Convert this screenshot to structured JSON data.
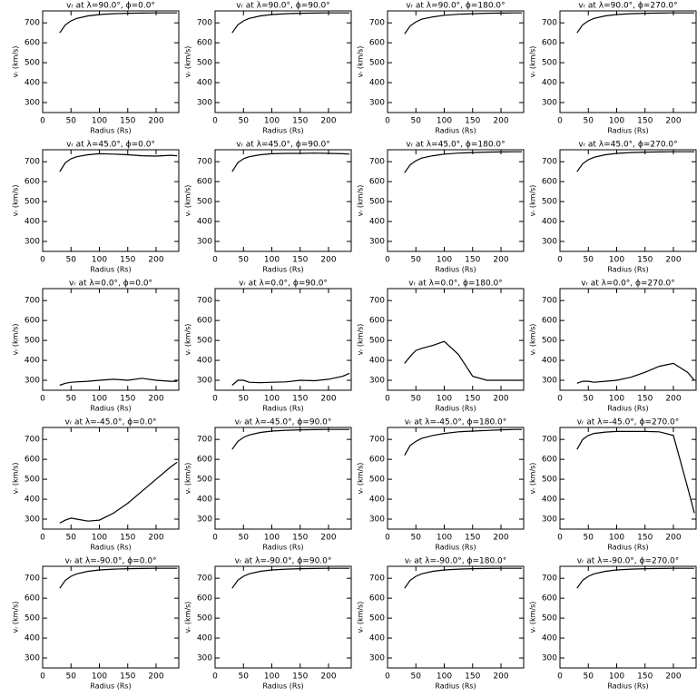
{
  "chart_data": [
    {
      "type": "line",
      "title": "vᵣ at λ=90.0°, ϕ=0.0°",
      "x_label": "Radius (Rs)",
      "y_label": "vᵣ (km/s)",
      "x": [
        30,
        40,
        50,
        60,
        80,
        100,
        125,
        150,
        175,
        200,
        225,
        237
      ],
      "values": [
        650,
        690,
        710,
        722,
        735,
        742,
        746,
        748,
        749,
        750,
        750,
        750
      ],
      "xlim": [
        0,
        240
      ],
      "ylim": [
        250,
        760
      ],
      "xticks": [
        0,
        50,
        100,
        150,
        200
      ],
      "yticks": [
        300,
        400,
        500,
        600,
        700
      ],
      "color": "#000000"
    },
    {
      "type": "line",
      "title": "vᵣ at λ=90.0°, ϕ=90.0°",
      "x_label": "Radius (Rs)",
      "y_label": "vᵣ (km/s)",
      "x": [
        30,
        40,
        50,
        60,
        80,
        100,
        125,
        150,
        175,
        200,
        225,
        237
      ],
      "values": [
        650,
        690,
        710,
        722,
        735,
        742,
        746,
        748,
        749,
        750,
        750,
        750
      ],
      "xlim": [
        0,
        240
      ],
      "ylim": [
        250,
        760
      ],
      "xticks": [
        0,
        50,
        100,
        150,
        200
      ],
      "yticks": [
        300,
        400,
        500,
        600,
        700
      ],
      "color": "#000000"
    },
    {
      "type": "line",
      "title": "vᵣ at λ=90.0°, ϕ=180.0°",
      "x_label": "Radius (Rs)",
      "y_label": "vᵣ (km/s)",
      "x": [
        30,
        40,
        50,
        60,
        80,
        100,
        125,
        150,
        175,
        200,
        225,
        237
      ],
      "values": [
        645,
        685,
        705,
        718,
        730,
        738,
        743,
        746,
        748,
        749,
        750,
        750
      ],
      "xlim": [
        0,
        240
      ],
      "ylim": [
        250,
        760
      ],
      "xticks": [
        0,
        50,
        100,
        150,
        200
      ],
      "yticks": [
        300,
        400,
        500,
        600,
        700
      ],
      "color": "#000000"
    },
    {
      "type": "line",
      "title": "vᵣ at λ=90.0°, ϕ=270.0°",
      "x_label": "Radius (Rs)",
      "y_label": "vᵣ (km/s)",
      "x": [
        30,
        40,
        50,
        60,
        80,
        100,
        125,
        150,
        175,
        200,
        225,
        237
      ],
      "values": [
        650,
        690,
        710,
        722,
        735,
        742,
        746,
        748,
        749,
        750,
        750,
        750
      ],
      "xlim": [
        0,
        240
      ],
      "ylim": [
        250,
        760
      ],
      "xticks": [
        0,
        50,
        100,
        150,
        200
      ],
      "yticks": [
        300,
        400,
        500,
        600,
        700
      ],
      "color": "#000000"
    },
    {
      "type": "line",
      "title": "vᵣ at λ=45.0°, ϕ=0.0°",
      "x_label": "Radius (Rs)",
      "y_label": "vᵣ (km/s)",
      "x": [
        30,
        40,
        50,
        60,
        80,
        100,
        125,
        150,
        175,
        200,
        225,
        237
      ],
      "values": [
        650,
        695,
        715,
        725,
        735,
        740,
        738,
        735,
        730,
        728,
        732,
        730
      ],
      "xlim": [
        0,
        240
      ],
      "ylim": [
        250,
        760
      ],
      "xticks": [
        0,
        50,
        100,
        150,
        200
      ],
      "yticks": [
        300,
        400,
        500,
        600,
        700
      ],
      "color": "#000000"
    },
    {
      "type": "line",
      "title": "vᵣ at λ=45.0°, ϕ=90.0°",
      "x_label": "Radius (Rs)",
      "y_label": "vᵣ (km/s)",
      "x": [
        30,
        40,
        50,
        60,
        80,
        100,
        125,
        150,
        175,
        200,
        225,
        237
      ],
      "values": [
        650,
        695,
        715,
        725,
        735,
        740,
        742,
        742,
        743,
        742,
        740,
        738
      ],
      "xlim": [
        0,
        240
      ],
      "ylim": [
        250,
        760
      ],
      "xticks": [
        0,
        50,
        100,
        150,
        200
      ],
      "yticks": [
        300,
        400,
        500,
        600,
        700
      ],
      "color": "#000000"
    },
    {
      "type": "line",
      "title": "vᵣ at λ=45.0°, ϕ=180.0°",
      "x_label": "Radius (Rs)",
      "y_label": "vᵣ (km/s)",
      "x": [
        30,
        40,
        50,
        60,
        80,
        100,
        125,
        150,
        175,
        200,
        225,
        237
      ],
      "values": [
        645,
        685,
        705,
        718,
        730,
        738,
        743,
        746,
        748,
        749,
        750,
        750
      ],
      "xlim": [
        0,
        240
      ],
      "ylim": [
        250,
        760
      ],
      "xticks": [
        0,
        50,
        100,
        150,
        200
      ],
      "yticks": [
        300,
        400,
        500,
        600,
        700
      ],
      "color": "#000000"
    },
    {
      "type": "line",
      "title": "vᵣ at λ=45.0°, ϕ=270.0°",
      "x_label": "Radius (Rs)",
      "y_label": "vᵣ (km/s)",
      "x": [
        30,
        40,
        50,
        60,
        80,
        100,
        125,
        150,
        175,
        200,
        225,
        237
      ],
      "values": [
        650,
        690,
        710,
        722,
        735,
        742,
        746,
        748,
        749,
        750,
        750,
        750
      ],
      "xlim": [
        0,
        240
      ],
      "ylim": [
        250,
        760
      ],
      "xticks": [
        0,
        50,
        100,
        150,
        200
      ],
      "yticks": [
        300,
        400,
        500,
        600,
        700
      ],
      "color": "#000000"
    },
    {
      "type": "line",
      "title": "vᵣ at λ=0.0°, ϕ=0.0°",
      "x_label": "Radius (Rs)",
      "y_label": "vᵣ (km/s)",
      "x": [
        30,
        40,
        50,
        60,
        80,
        100,
        125,
        150,
        175,
        200,
        225,
        237
      ],
      "values": [
        275,
        285,
        290,
        292,
        295,
        300,
        305,
        300,
        310,
        300,
        295,
        295
      ],
      "xlim": [
        0,
        240
      ],
      "ylim": [
        250,
        760
      ],
      "xticks": [
        0,
        50,
        100,
        150,
        200
      ],
      "yticks": [
        300,
        400,
        500,
        600,
        700
      ],
      "color": "#000000"
    },
    {
      "type": "line",
      "title": "vᵣ at λ=0.0°, ϕ=90.0°",
      "x_label": "Radius (Rs)",
      "y_label": "vᵣ (km/s)",
      "x": [
        30,
        40,
        50,
        60,
        80,
        100,
        125,
        150,
        175,
        200,
        225,
        237
      ],
      "values": [
        275,
        300,
        300,
        290,
        288,
        290,
        292,
        300,
        298,
        305,
        320,
        335
      ],
      "xlim": [
        0,
        240
      ],
      "ylim": [
        250,
        760
      ],
      "xticks": [
        0,
        50,
        100,
        150,
        200
      ],
      "yticks": [
        300,
        400,
        500,
        600,
        700
      ],
      "color": "#000000"
    },
    {
      "type": "line",
      "title": "vᵣ at λ=0.0°, ϕ=180.0°",
      "x_label": "Radius (Rs)",
      "y_label": "vᵣ (km/s)",
      "x": [
        30,
        40,
        50,
        60,
        80,
        100,
        125,
        150,
        175,
        200,
        225,
        237
      ],
      "values": [
        385,
        420,
        450,
        460,
        475,
        495,
        430,
        320,
        300,
        300,
        300,
        300
      ],
      "xlim": [
        0,
        240
      ],
      "ylim": [
        250,
        760
      ],
      "xticks": [
        0,
        50,
        100,
        150,
        200
      ],
      "yticks": [
        300,
        400,
        500,
        600,
        700
      ],
      "color": "#000000"
    },
    {
      "type": "line",
      "title": "vᵣ at λ=0.0°, ϕ=270.0°",
      "x_label": "Radius (Rs)",
      "y_label": "vᵣ (km/s)",
      "x": [
        30,
        40,
        50,
        60,
        80,
        100,
        125,
        150,
        175,
        200,
        225,
        237
      ],
      "values": [
        285,
        295,
        295,
        290,
        295,
        300,
        315,
        340,
        370,
        385,
        340,
        300
      ],
      "xlim": [
        0,
        240
      ],
      "ylim": [
        250,
        760
      ],
      "xticks": [
        0,
        50,
        100,
        150,
        200
      ],
      "yticks": [
        300,
        400,
        500,
        600,
        700
      ],
      "color": "#000000"
    },
    {
      "type": "line",
      "title": "vᵣ at λ=-45.0°, ϕ=0.0°",
      "x_label": "Radius (Rs)",
      "y_label": "vᵣ (km/s)",
      "x": [
        30,
        40,
        50,
        60,
        80,
        100,
        125,
        150,
        175,
        200,
        225,
        237
      ],
      "values": [
        280,
        295,
        305,
        300,
        290,
        295,
        330,
        380,
        440,
        500,
        560,
        585
      ],
      "xlim": [
        0,
        240
      ],
      "ylim": [
        250,
        760
      ],
      "xticks": [
        0,
        50,
        100,
        150,
        200
      ],
      "yticks": [
        300,
        400,
        500,
        600,
        700
      ],
      "color": "#000000"
    },
    {
      "type": "line",
      "title": "vᵣ at λ=-45.0°, ϕ=90.0°",
      "x_label": "Radius (Rs)",
      "y_label": "vᵣ (km/s)",
      "x": [
        30,
        40,
        50,
        60,
        80,
        100,
        125,
        150,
        175,
        200,
        225,
        237
      ],
      "values": [
        650,
        690,
        710,
        722,
        735,
        742,
        746,
        748,
        749,
        750,
        750,
        750
      ],
      "xlim": [
        0,
        240
      ],
      "ylim": [
        250,
        760
      ],
      "xticks": [
        0,
        50,
        100,
        150,
        200
      ],
      "yticks": [
        300,
        400,
        500,
        600,
        700
      ],
      "color": "#000000"
    },
    {
      "type": "line",
      "title": "vᵣ at λ=-45.0°, ϕ=180.0°",
      "x_label": "Radius (Rs)",
      "y_label": "vᵣ (km/s)",
      "x": [
        30,
        40,
        50,
        60,
        80,
        100,
        125,
        150,
        175,
        200,
        225,
        237
      ],
      "values": [
        620,
        670,
        690,
        705,
        720,
        730,
        738,
        742,
        745,
        748,
        750,
        750
      ],
      "xlim": [
        0,
        240
      ],
      "ylim": [
        250,
        760
      ],
      "xticks": [
        0,
        50,
        100,
        150,
        200
      ],
      "yticks": [
        300,
        400,
        500,
        600,
        700
      ],
      "color": "#000000"
    },
    {
      "type": "line",
      "title": "vᵣ at λ=-45.0°, ϕ=270.0°",
      "x_label": "Radius (Rs)",
      "y_label": "vᵣ (km/s)",
      "x": [
        30,
        40,
        50,
        60,
        80,
        100,
        125,
        150,
        175,
        200,
        225,
        237
      ],
      "values": [
        650,
        700,
        720,
        730,
        737,
        740,
        740,
        740,
        738,
        720,
        460,
        330
      ],
      "xlim": [
        0,
        240
      ],
      "ylim": [
        250,
        760
      ],
      "xticks": [
        0,
        50,
        100,
        150,
        200
      ],
      "yticks": [
        300,
        400,
        500,
        600,
        700
      ],
      "color": "#000000"
    },
    {
      "type": "line",
      "title": "vᵣ at λ=-90.0°, ϕ=0.0°",
      "x_label": "Radius (Rs)",
      "y_label": "vᵣ (km/s)",
      "x": [
        30,
        40,
        50,
        60,
        80,
        100,
        125,
        150,
        175,
        200,
        225,
        237
      ],
      "values": [
        650,
        690,
        710,
        722,
        735,
        742,
        746,
        748,
        749,
        750,
        750,
        750
      ],
      "xlim": [
        0,
        240
      ],
      "ylim": [
        250,
        760
      ],
      "xticks": [
        0,
        50,
        100,
        150,
        200
      ],
      "yticks": [
        300,
        400,
        500,
        600,
        700
      ],
      "color": "#000000"
    },
    {
      "type": "line",
      "title": "vᵣ at λ=-90.0°, ϕ=90.0°",
      "x_label": "Radius (Rs)",
      "y_label": "vᵣ (km/s)",
      "x": [
        30,
        40,
        50,
        60,
        80,
        100,
        125,
        150,
        175,
        200,
        225,
        237
      ],
      "values": [
        650,
        690,
        710,
        722,
        735,
        742,
        746,
        748,
        749,
        750,
        750,
        750
      ],
      "xlim": [
        0,
        240
      ],
      "ylim": [
        250,
        760
      ],
      "xticks": [
        0,
        50,
        100,
        150,
        200
      ],
      "yticks": [
        300,
        400,
        500,
        600,
        700
      ],
      "color": "#000000"
    },
    {
      "type": "line",
      "title": "vᵣ at λ=-90.0°, ϕ=180.0°",
      "x_label": "Radius (Rs)",
      "y_label": "vᵣ (km/s)",
      "x": [
        30,
        40,
        50,
        60,
        80,
        100,
        125,
        150,
        175,
        200,
        225,
        237
      ],
      "values": [
        650,
        690,
        710,
        722,
        735,
        742,
        746,
        748,
        749,
        750,
        750,
        750
      ],
      "xlim": [
        0,
        240
      ],
      "ylim": [
        250,
        760
      ],
      "xticks": [
        0,
        50,
        100,
        150,
        200
      ],
      "yticks": [
        300,
        400,
        500,
        600,
        700
      ],
      "color": "#000000"
    },
    {
      "type": "line",
      "title": "vᵣ at λ=-90.0°, ϕ=270.0°",
      "x_label": "Radius (Rs)",
      "y_label": "vᵣ (km/s)",
      "x": [
        30,
        40,
        50,
        60,
        80,
        100,
        125,
        150,
        175,
        200,
        225,
        237
      ],
      "values": [
        650,
        690,
        710,
        722,
        735,
        742,
        746,
        748,
        749,
        750,
        750,
        750
      ],
      "xlim": [
        0,
        240
      ],
      "ylim": [
        250,
        760
      ],
      "xticks": [
        0,
        50,
        100,
        150,
        200
      ],
      "yticks": [
        300,
        400,
        500,
        600,
        700
      ],
      "color": "#000000"
    }
  ]
}
